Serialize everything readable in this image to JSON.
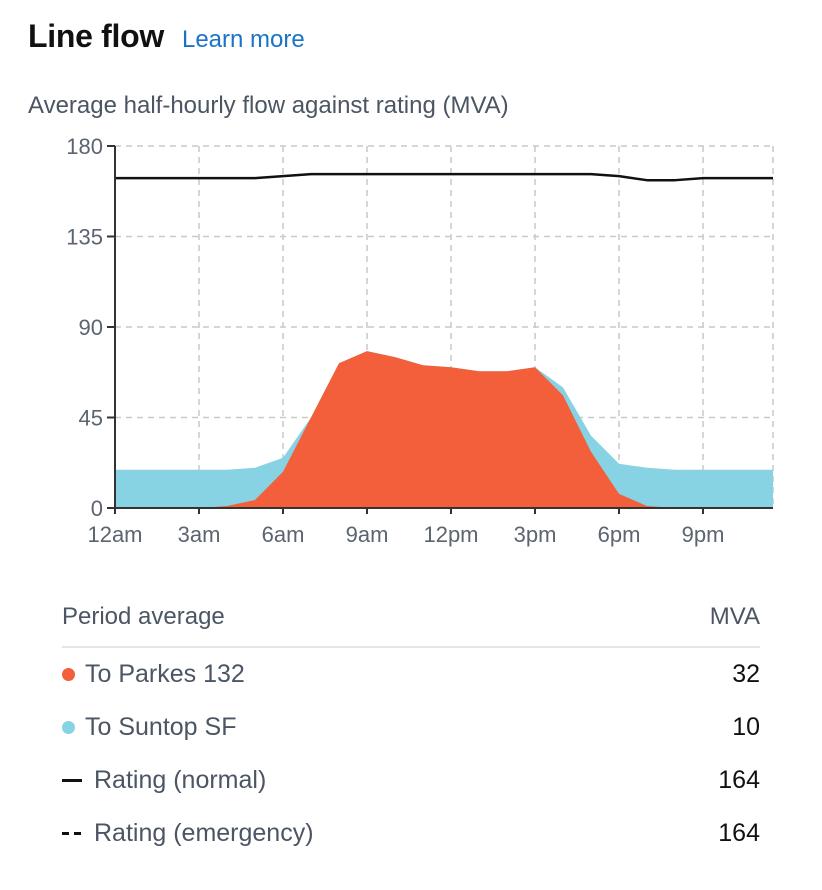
{
  "header": {
    "title": "Line flow",
    "learn_more": "Learn more"
  },
  "chart_data": {
    "type": "area",
    "title": "Average half-hourly flow against rating (MVA)",
    "xlabel": "",
    "ylabel": "",
    "ylim": [
      0,
      180
    ],
    "xlim": [
      0,
      23.5
    ],
    "yticks": [
      0,
      45,
      90,
      135,
      180
    ],
    "xticks": [
      0,
      3,
      6,
      9,
      12,
      15,
      18,
      21
    ],
    "xtick_labels": [
      "12am",
      "3am",
      "6am",
      "9am",
      "12pm",
      "3pm",
      "6pm",
      "9pm"
    ],
    "grid": true,
    "colors": {
      "to_parkes": "#f25f3a",
      "to_suntop": "#87d3e3",
      "rating": "#111111",
      "grid": "#c9c9c9"
    },
    "x": [
      0,
      1,
      2,
      3,
      4,
      5,
      6,
      7,
      8,
      9,
      10,
      11,
      12,
      13,
      14,
      15,
      16,
      17,
      18,
      19,
      20,
      21,
      22,
      23.5
    ],
    "series": [
      {
        "name": "To Suntop SF",
        "values": [
          19,
          19,
          19,
          19,
          19,
          20,
          25,
          45,
          72,
          78,
          75,
          71,
          70,
          68,
          68,
          70,
          60,
          36,
          22,
          20,
          19,
          19,
          19,
          19
        ]
      },
      {
        "name": "To Parkes 132",
        "values": [
          0,
          0,
          0,
          0,
          1,
          4,
          18,
          45,
          72,
          78,
          75,
          71,
          70,
          68,
          68,
          70,
          56,
          28,
          7,
          1,
          0,
          0,
          0,
          0
        ]
      },
      {
        "name": "Rating (normal)",
        "values": [
          164,
          164,
          164,
          164,
          164,
          164,
          165,
          166,
          166,
          166,
          166,
          166,
          166,
          166,
          166,
          166,
          166,
          166,
          165,
          163,
          163,
          164,
          164,
          164
        ]
      }
    ]
  },
  "table": {
    "header_label": "Period average",
    "header_unit": "MVA",
    "rows": [
      {
        "label": "To Parkes 132",
        "value": "32"
      },
      {
        "label": "To Suntop SF",
        "value": "10"
      },
      {
        "label": "Rating (normal)",
        "value": "164"
      },
      {
        "label": "Rating (emergency)",
        "value": "164"
      }
    ]
  }
}
